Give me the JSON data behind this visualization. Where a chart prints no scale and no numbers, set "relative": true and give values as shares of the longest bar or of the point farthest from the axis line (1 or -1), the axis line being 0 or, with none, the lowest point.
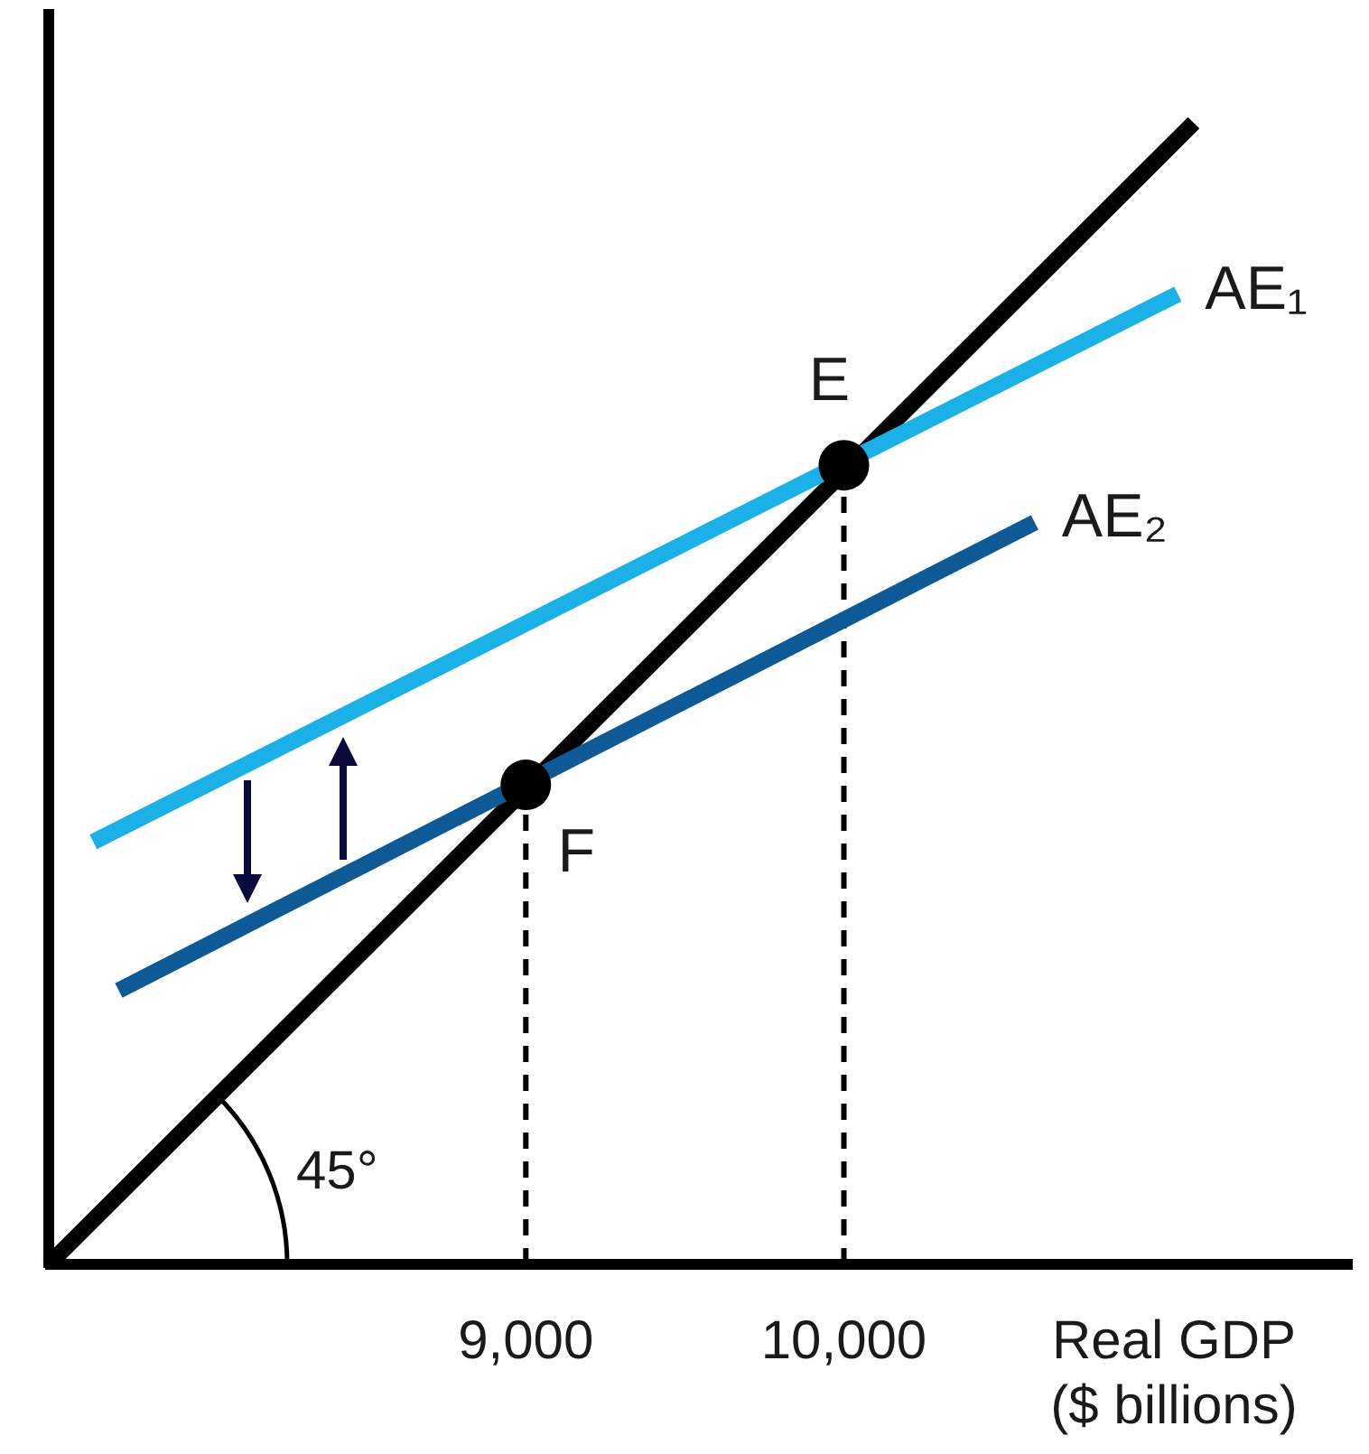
{
  "chart_data": {
    "type": "line",
    "relative": true,
    "xlim": [
      7500,
      11600
    ],
    "xticks": [
      {
        "value": 9000,
        "label": "9,000"
      },
      {
        "value": 10000,
        "label": "10,000"
      }
    ],
    "xlabel": "Real GDP ($ billions)",
    "grid": false,
    "legend": false,
    "series": [
      {
        "x": [
          7500,
          11100
        ],
        "values": [
          0,
          1
        ],
        "color": "#000000",
        "line_style": "solid"
      },
      {
        "name": "AE₁",
        "x": [
          7640,
          11050
        ],
        "values": [
          0.37,
          0.85
        ],
        "color": "#1ab0e8",
        "line_style": "solid"
      },
      {
        "name": "AE₂",
        "x": [
          7720,
          10600
        ],
        "values": [
          0.24,
          0.65
        ],
        "color": "#0e5a96",
        "line_style": "solid"
      },
      {
        "type": "scatter",
        "x": [
          10000
        ],
        "values": [
          0.7
        ],
        "color": "#000000",
        "marker": "circle"
      },
      {
        "type": "scatter",
        "x": [
          9000
        ],
        "values": [
          0.42
        ],
        "color": "#000000",
        "marker": "circle"
      }
    ],
    "ref_lines": [
      {
        "axis": "x",
        "value": 9000,
        "color": "#000000",
        "line_style": "dashed"
      },
      {
        "axis": "x",
        "value": 10000,
        "color": "#000000",
        "line_style": "dashed"
      }
    ],
    "annotations": [
      {
        "text": "E",
        "x": 10000,
        "y": 0.7
      },
      {
        "text": "F",
        "x": 9000,
        "y": 0.42
      },
      "45°"
    ]
  }
}
